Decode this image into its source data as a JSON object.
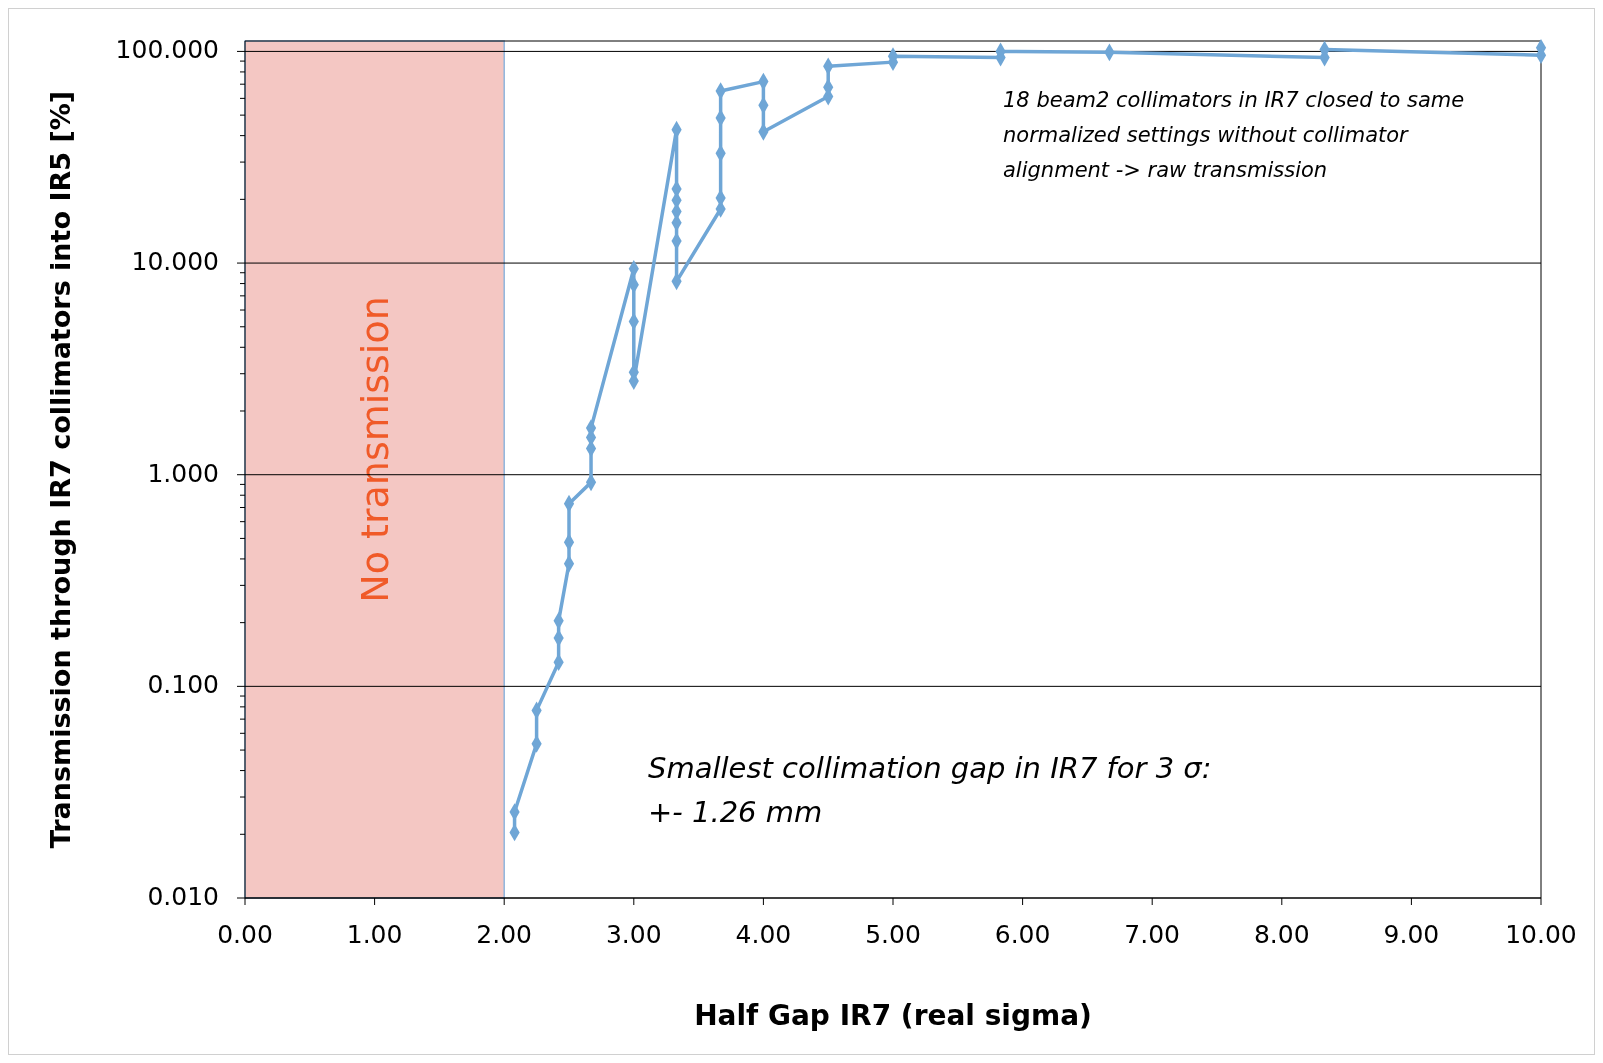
{
  "chart_data": {
    "type": "line",
    "xlabel": "Half Gap IR7 (real sigma)",
    "ylabel": "Transmission through IR7 collimators into IR5 [%]",
    "log": "y",
    "grid": "y",
    "marker": "diamond",
    "line_style": "solid",
    "xlim": [
      0,
      10
    ],
    "xticks": [
      {
        "value": 0,
        "label": "0.00"
      },
      {
        "value": 1,
        "label": "1.00"
      },
      {
        "value": 2,
        "label": "2.00"
      },
      {
        "value": 3,
        "label": "3.00"
      },
      {
        "value": 4,
        "label": "4.00"
      },
      {
        "value": 5,
        "label": "5.00"
      },
      {
        "value": 6,
        "label": "6.00"
      },
      {
        "value": 7,
        "label": "7.00"
      },
      {
        "value": 8,
        "label": "8.00"
      },
      {
        "value": 9,
        "label": "9.00"
      },
      {
        "value": 10,
        "label": "10.00"
      }
    ],
    "ylim": [
      0.01,
      112
    ],
    "yticks": [
      {
        "value": 0.01,
        "label": "0.010"
      },
      {
        "value": 0.02,
        "label": null
      },
      {
        "value": 0.03,
        "label": null
      },
      {
        "value": 0.04,
        "label": null
      },
      {
        "value": 0.05,
        "label": null
      },
      {
        "value": 0.06,
        "label": null
      },
      {
        "value": 0.07,
        "label": null
      },
      {
        "value": 0.08,
        "label": null
      },
      {
        "value": 0.09,
        "label": null
      },
      {
        "value": 0.1,
        "label": "0.100"
      },
      {
        "value": 0.2,
        "label": null
      },
      {
        "value": 0.3,
        "label": null
      },
      {
        "value": 0.4,
        "label": null
      },
      {
        "value": 0.5,
        "label": null
      },
      {
        "value": 0.6,
        "label": null
      },
      {
        "value": 0.7,
        "label": null
      },
      {
        "value": 0.8,
        "label": null
      },
      {
        "value": 0.9,
        "label": null
      },
      {
        "value": 1,
        "label": "1.000"
      },
      {
        "value": 2,
        "label": null
      },
      {
        "value": 3,
        "label": null
      },
      {
        "value": 4,
        "label": null
      },
      {
        "value": 5,
        "label": null
      },
      {
        "value": 6,
        "label": null
      },
      {
        "value": 7,
        "label": null
      },
      {
        "value": 8,
        "label": null
      },
      {
        "value": 9,
        "label": null
      },
      {
        "value": 10,
        "label": "10.000"
      },
      {
        "value": 20,
        "label": null
      },
      {
        "value": 30,
        "label": null
      },
      {
        "value": 40,
        "label": null
      },
      {
        "value": 50,
        "label": null
      },
      {
        "value": 60,
        "label": null
      },
      {
        "value": 70,
        "label": null
      },
      {
        "value": 80,
        "label": null
      },
      {
        "value": 90,
        "label": null
      },
      {
        "value": 100,
        "label": "100.000"
      }
    ],
    "bands": [
      {
        "axis": "x",
        "from": 0,
        "to": 2,
        "label": "No transmission",
        "color": "#f4c7c3"
      }
    ],
    "annotations": [
      "18 beam2 collimators in IR7 closed to same normalized settings without collimator alignment -> raw transmission",
      "Smallest collimation gap in IR7 for 3 σ:\n+- 1.26 mm"
    ],
    "series": [
      {
        "color": "#6fa6d6",
        "x": [
          2.08,
          2.08,
          2.25,
          2.25,
          2.42,
          2.42,
          2.42,
          2.5,
          2.5,
          2.5,
          2.67,
          2.67,
          2.67,
          2.67,
          3.0,
          3.0,
          3.0,
          3.0,
          3.0,
          3.33,
          3.33,
          3.33,
          3.33,
          3.33,
          3.33,
          3.33,
          3.67,
          3.67,
          3.67,
          3.67,
          3.67,
          4.0,
          4.0,
          4.0,
          4.5,
          4.5,
          4.5,
          5.0,
          5.0,
          5.83,
          5.83,
          6.67,
          8.33,
          8.33,
          10,
          10
        ],
        "values": [
          0.0204,
          0.0255,
          0.0535,
          0.077,
          0.13,
          0.169,
          0.204,
          0.38,
          0.48,
          0.73,
          0.92,
          1.33,
          1.5,
          1.66,
          9.4,
          7.9,
          5.3,
          3.05,
          2.77,
          42.7,
          22.4,
          19.8,
          17.5,
          15.5,
          12.7,
          8.2,
          18,
          20.3,
          33,
          48.5,
          65,
          72,
          55.6,
          41.7,
          61.2,
          67.7,
          85,
          89,
          95,
          93.5,
          100,
          99,
          93.5,
          102,
          96,
          104
        ]
      }
    ]
  }
}
